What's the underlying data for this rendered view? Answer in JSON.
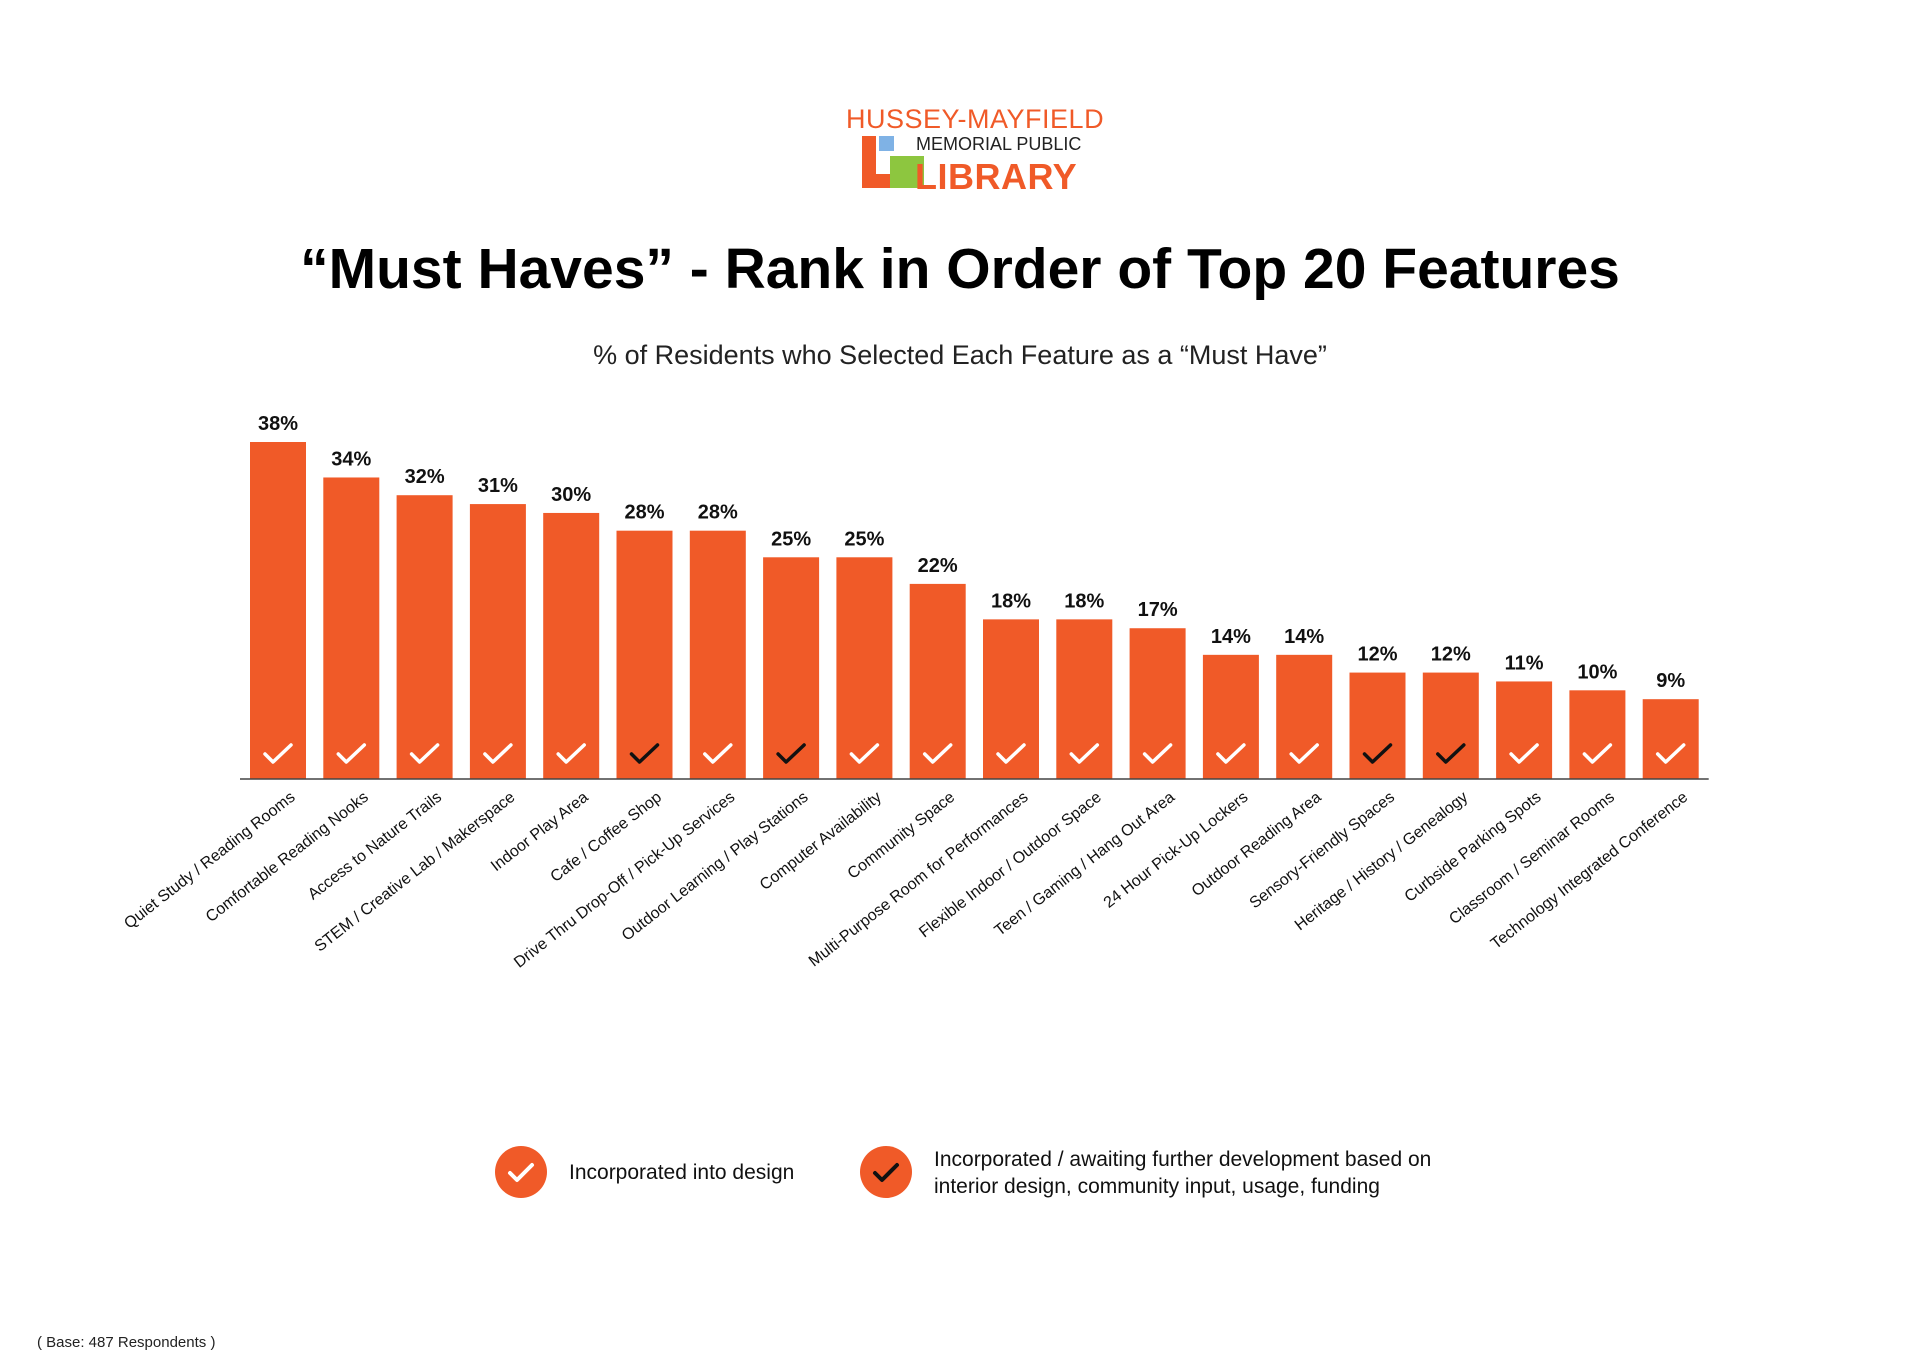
{
  "logo": {
    "line1": "HUSSEY-MAYFIELD",
    "line2": "MEMORIAL PUBLIC",
    "line3": "LIBRARY",
    "colors": {
      "orange": "#f05a28",
      "blue": "#7fb2e5",
      "green": "#8dc63f"
    }
  },
  "chart_data": {
    "type": "bar",
    "title": "“Must Haves” - Rank in Order of Top 20 Features",
    "subtitle": "% of Residents who Selected Each Feature as a “Must Have”",
    "categories": [
      "Quiet Study / Reading Rooms",
      "Comfortable Reading Nooks",
      "Access to Nature Trails",
      "STEM / Creative Lab / Makerspace",
      "Indoor Play Area",
      "Cafe / Coffee Shop",
      "Drive Thru Drop-Off / Pick-Up Services",
      "Outdoor Learning / Play Stations",
      "Computer Availability",
      "Community Space",
      "Multi-Purpose Room for Performances",
      "Flexible Indoor / Outdoor Space",
      "Teen / Gaming / Hang Out Area",
      "24 Hour Pick-Up Lockers",
      "Outdoor Reading Area",
      "Sensory-Friendly Spaces",
      "Heritage / History / Genealogy",
      "Curbside Parking Spots",
      "Classroom / Seminar Rooms",
      "Technology Integrated Conference"
    ],
    "values": [
      38,
      34,
      32,
      31,
      30,
      28,
      28,
      25,
      25,
      22,
      18,
      18,
      17,
      14,
      14,
      12,
      12,
      11,
      10,
      9
    ],
    "value_labels": [
      "38%",
      "34%",
      "32%",
      "31%",
      "30%",
      "28%",
      "28%",
      "25%",
      "25%",
      "22%",
      "18%",
      "18%",
      "17%",
      "14%",
      "14%",
      "12%",
      "12%",
      "11%",
      "10%",
      "9%"
    ],
    "check_status": [
      "incorporated",
      "incorporated",
      "incorporated",
      "incorporated",
      "incorporated",
      "awaiting",
      "incorporated",
      "awaiting",
      "incorporated",
      "incorporated",
      "incorporated",
      "incorporated",
      "incorporated",
      "incorporated",
      "incorporated",
      "awaiting",
      "awaiting",
      "incorporated",
      "incorporated",
      "incorporated"
    ],
    "ylim": [
      0,
      38
    ],
    "grid": false,
    "bar_color": "#f05a28",
    "check_colors": {
      "incorporated": "#ffffff",
      "awaiting": "#111111"
    }
  },
  "legend": {
    "item1": "Incorporated into design",
    "item2_line1": "Incorporated / awaiting further development based on",
    "item2_line2": "interior design, community input, usage, funding"
  },
  "footnote": "( Base: 487 Respondents )"
}
